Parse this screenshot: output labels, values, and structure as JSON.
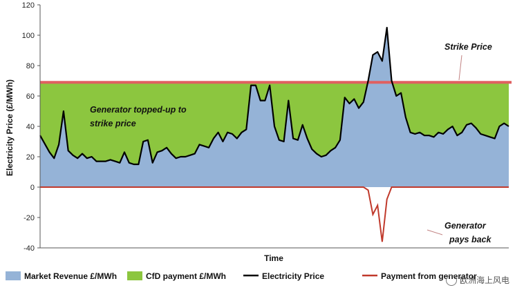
{
  "chart_data": {
    "type": "area",
    "xlabel": "Time",
    "ylabel": "Electricity Price (£/MWh)",
    "ylim": [
      -40,
      120
    ],
    "yticks": [
      -40,
      -20,
      0,
      20,
      40,
      60,
      80,
      100,
      120
    ],
    "strike_price": 69,
    "grid": false,
    "legend_position": "bottom",
    "annotations": {
      "strike_price": "Strike Price",
      "topped_up_line1": "Generator topped-up to",
      "topped_up_line2": "strike price",
      "pays_back_line1": "Generator",
      "pays_back_line2": "pays back"
    },
    "legend": [
      {
        "name": "Market Revenue £/MWh",
        "color": "#95b3d7",
        "kind": "area"
      },
      {
        "name": "CfD payment £/MWh",
        "color": "#8cc63f",
        "kind": "area"
      },
      {
        "name": "Electricity Price",
        "color": "#000000",
        "kind": "line"
      },
      {
        "name": "Payment from generator",
        "color": "#c0392b",
        "kind": "line"
      }
    ],
    "series": [
      {
        "name": "Electricity Price",
        "x": [
          0,
          2,
          3,
          4,
          5,
          6,
          7,
          8,
          9,
          10,
          11,
          12,
          13,
          14,
          15,
          16,
          17,
          18,
          19,
          20,
          21,
          22,
          23,
          24,
          25,
          26,
          27,
          28,
          29,
          30,
          31,
          32,
          33,
          34,
          35,
          36,
          37,
          38,
          39,
          40,
          41,
          42,
          43,
          44,
          45,
          46,
          47,
          48,
          49,
          50,
          51,
          52,
          53,
          54,
          55,
          56,
          57,
          58,
          59,
          60,
          61,
          62,
          63,
          64,
          65,
          66,
          67,
          68,
          69,
          70,
          71,
          72,
          73,
          74,
          75,
          76,
          77,
          78,
          79,
          80,
          81,
          82,
          83,
          84,
          85,
          86,
          87,
          88,
          89,
          90,
          91,
          92,
          93,
          94,
          95,
          96,
          97,
          98,
          99,
          100
        ],
        "y": [
          34,
          23,
          19,
          28,
          50,
          24,
          21,
          19,
          22,
          19,
          20,
          17,
          17,
          17,
          18,
          17,
          16,
          23,
          16,
          15,
          15,
          30,
          31,
          16,
          23,
          24,
          26,
          22,
          19,
          20,
          20,
          21,
          22,
          28,
          27,
          26,
          32,
          36,
          30,
          36,
          35,
          32,
          36,
          38,
          67,
          67,
          57,
          57,
          67,
          40,
          31,
          30,
          57,
          32,
          31,
          41,
          32,
          25,
          22,
          20,
          21,
          24,
          26,
          31,
          59,
          55,
          58,
          52,
          56,
          70,
          87,
          89,
          83,
          105,
          70,
          60,
          62,
          46,
          36,
          35,
          36,
          34,
          34,
          33,
          36,
          35,
          38,
          40,
          34,
          36,
          41,
          42,
          39,
          35,
          34,
          33,
          32,
          40,
          42,
          40
        ],
        "color": "#000000"
      },
      {
        "name": "Payment from generator",
        "note": "zero except around the price spike above the strike price",
        "x": [
          0,
          69,
          70,
          71,
          72,
          73,
          74,
          75,
          76,
          100
        ],
        "y": [
          0,
          0,
          -2,
          -18,
          -12,
          -36,
          -8,
          0,
          0,
          0
        ],
        "color": "#c0392b"
      }
    ]
  }
}
